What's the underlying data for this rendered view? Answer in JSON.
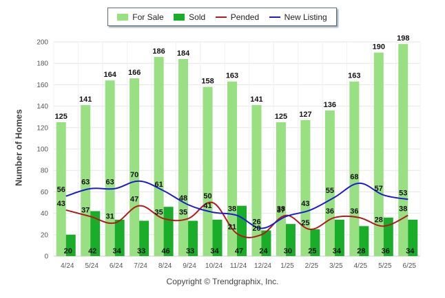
{
  "chart_data": {
    "type": "bar",
    "title": "",
    "xlabel": "",
    "ylabel": "Number of Homes",
    "ylim": [
      0,
      200
    ],
    "yticks": [
      0,
      20,
      40,
      60,
      80,
      100,
      120,
      140,
      160,
      180,
      200
    ],
    "grid": true,
    "legend_position": "top-center",
    "categories": [
      "4/24",
      "5/24",
      "6/24",
      "7/24",
      "8/24",
      "9/24",
      "10/24",
      "11/24",
      "12/24",
      "1/25",
      "2/25",
      "3/25",
      "4/25",
      "5/25",
      "6/25"
    ],
    "series": [
      {
        "name": "For Sale",
        "kind": "bar",
        "color": "#99e083",
        "values": [
          125,
          141,
          164,
          166,
          186,
          184,
          158,
          163,
          141,
          125,
          127,
          136,
          163,
          190,
          198
        ]
      },
      {
        "name": "Sold",
        "kind": "bar",
        "color": "#1aad2a",
        "values": [
          20,
          42,
          34,
          33,
          46,
          33,
          34,
          47,
          24,
          30,
          25,
          34,
          28,
          36,
          34
        ]
      },
      {
        "name": "Pended",
        "kind": "line",
        "color": "#b31b1b",
        "values": [
          43,
          37,
          31,
          47,
          35,
          35,
          50,
          21,
          20,
          38,
          25,
          36,
          36,
          28,
          38
        ]
      },
      {
        "name": "New Listing",
        "kind": "line",
        "color": "#1a1ad6",
        "values": [
          56,
          63,
          63,
          70,
          61,
          48,
          41,
          38,
          26,
          37,
          43,
          55,
          68,
          57,
          53
        ]
      }
    ]
  },
  "footer": {
    "copyright": "Copyright © Trendgraphix, Inc."
  }
}
